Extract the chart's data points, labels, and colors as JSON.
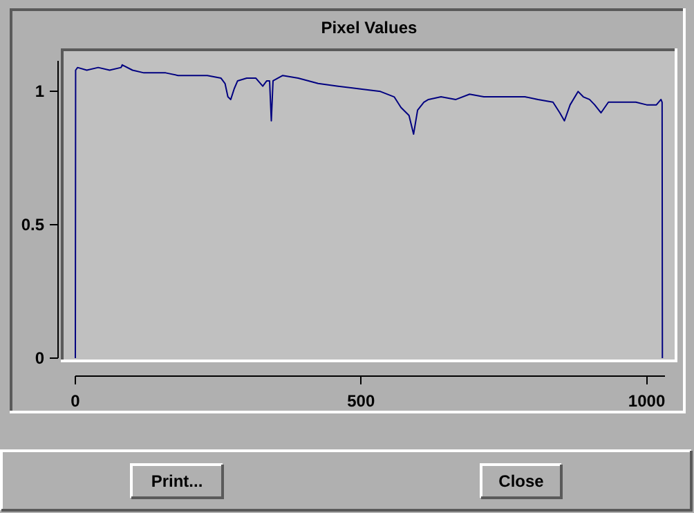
{
  "chart_data": {
    "type": "line",
    "title": "Pixel Values",
    "x": [
      0,
      0.5,
      4,
      20,
      40,
      60,
      80,
      82,
      100,
      120,
      140,
      158,
      180,
      200,
      231,
      255,
      262,
      267,
      272,
      278,
      284,
      300,
      316,
      328,
      335,
      340,
      343,
      346,
      363,
      390,
      425,
      460,
      497,
      534,
      558,
      570,
      584,
      592,
      599,
      610,
      618,
      640,
      666,
      690,
      715,
      750,
      787,
      810,
      836,
      848,
      856,
      866,
      880,
      889,
      900,
      909,
      920,
      933,
      955,
      981,
      1000,
      1017,
      1025,
      1027,
      1027.5
    ],
    "series": [
      {
        "color": "#000080",
        "values": [
          0,
          1.08,
          1.09,
          1.08,
          1.09,
          1.08,
          1.09,
          1.1,
          1.08,
          1.07,
          1.07,
          1.07,
          1.06,
          1.06,
          1.06,
          1.05,
          1.03,
          0.98,
          0.97,
          1.01,
          1.04,
          1.05,
          1.05,
          1.02,
          1.04,
          1.04,
          0.89,
          1.04,
          1.06,
          1.05,
          1.03,
          1.02,
          1.01,
          1.0,
          0.98,
          0.94,
          0.91,
          0.84,
          0.93,
          0.96,
          0.97,
          0.98,
          0.97,
          0.99,
          0.98,
          0.98,
          0.98,
          0.97,
          0.96,
          0.92,
          0.89,
          0.95,
          1.0,
          0.98,
          0.97,
          0.95,
          0.92,
          0.96,
          0.96,
          0.96,
          0.95,
          0.95,
          0.97,
          0.96,
          0
        ]
      }
    ],
    "xlim": [
      0,
      1032
    ],
    "xticks": [
      0,
      500,
      1000
    ],
    "ylim": [
      0,
      1.115
    ],
    "yticks": [
      0,
      0.5,
      1
    ],
    "grid": false,
    "annotations": [
      "Print...",
      "Close"
    ]
  }
}
